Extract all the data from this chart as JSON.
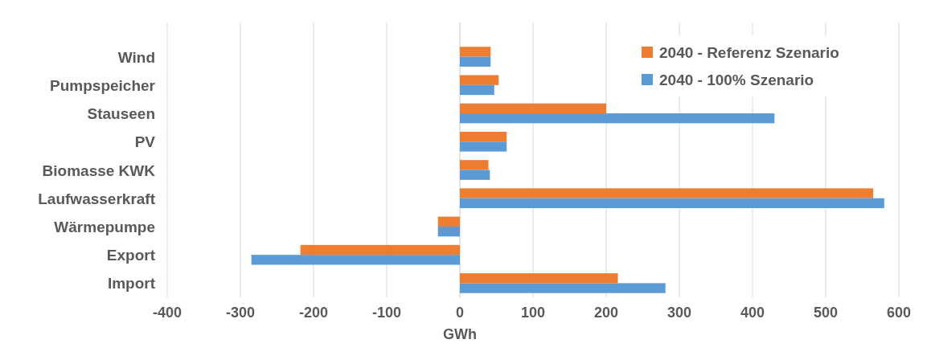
{
  "chart_data": {
    "type": "bar",
    "orientation": "horizontal",
    "xlabel": "GWh",
    "categories": [
      "Wind",
      "Pumpspeicher",
      "Stauseen",
      "PV",
      "Biomasse KWK",
      "Laufwasserkraft",
      "Wärmepumpe",
      "Export",
      "Import"
    ],
    "series": [
      {
        "name": "2040 - Referenz Szenario",
        "color": "#ed7d31",
        "values": [
          42,
          53,
          200,
          64,
          39,
          565,
          -30,
          -218,
          216
        ]
      },
      {
        "name": "2040 - 100% Szenario",
        "color": "#5b9bd5",
        "values": [
          42,
          47,
          430,
          64,
          41,
          580,
          -30,
          -285,
          281
        ]
      }
    ],
    "xlim": [
      -400,
      600
    ],
    "xticks": [
      -400,
      -300,
      -200,
      -100,
      0,
      100,
      200,
      300,
      400,
      500,
      600
    ],
    "grid": "x",
    "legend": "top right"
  }
}
